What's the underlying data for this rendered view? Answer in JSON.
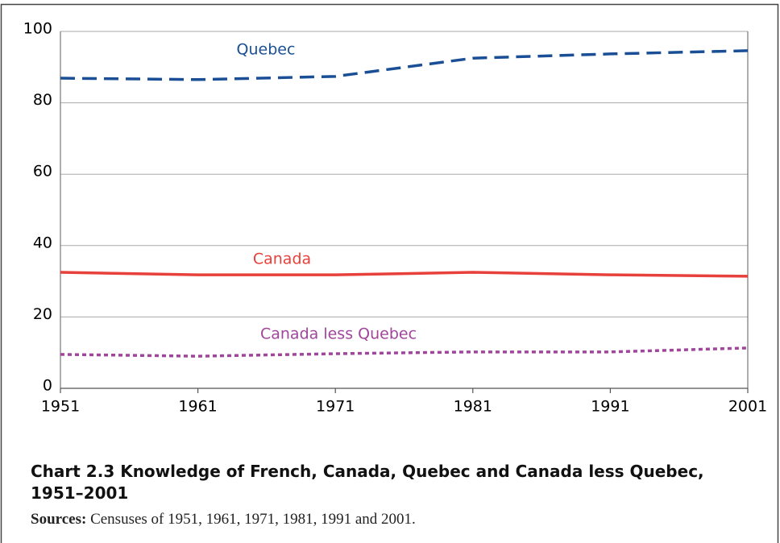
{
  "chart_data": {
    "type": "line",
    "title": "Chart 2.3 Knowledge of French, Canada, Quebec and Canada less Quebec, 1951–2001",
    "source_label": "Sources:",
    "source": "Censuses of 1951, 1961, 1971, 1981, 1991 and 2001.",
    "x": [
      1951,
      1961,
      1971,
      1981,
      1991,
      2001
    ],
    "xlim": [
      1951,
      2001
    ],
    "xticks": [
      1951,
      1961,
      1971,
      1981,
      1991,
      2001
    ],
    "ylim": [
      0,
      100
    ],
    "yticks": [
      0,
      20,
      40,
      60,
      80,
      100
    ],
    "grid": true,
    "series": [
      {
        "name": "Quebec",
        "color": "#1a4f96",
        "style": "dashed",
        "values": [
          86.9,
          86.5,
          87.4,
          92.5,
          93.7,
          94.6
        ]
      },
      {
        "name": "Canada",
        "color": "#e8403a",
        "style": "solid",
        "values": [
          32.5,
          31.8,
          31.8,
          32.5,
          31.8,
          31.4
        ]
      },
      {
        "name": "Canada less Quebec",
        "color": "#a1459c",
        "style": "dotted",
        "values": [
          9.5,
          9.0,
          9.7,
          10.2,
          10.2,
          11.3
        ]
      }
    ]
  }
}
